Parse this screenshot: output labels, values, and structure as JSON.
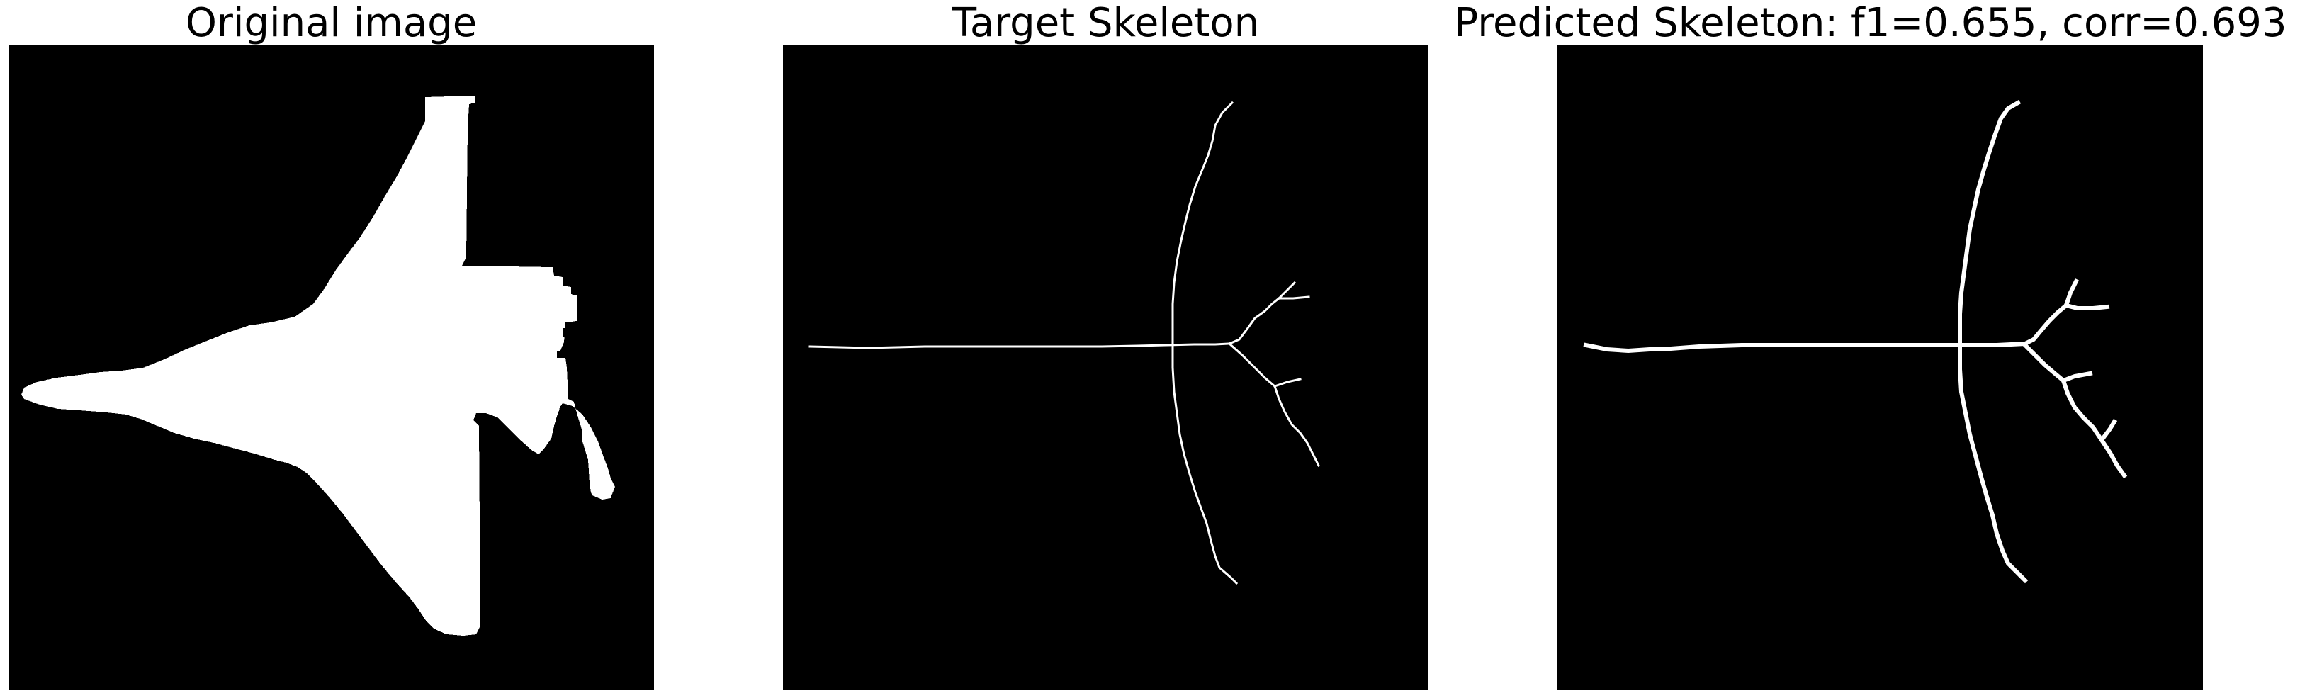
{
  "panels": [
    {
      "title": "Original image"
    },
    {
      "title": "Target Skeleton"
    },
    {
      "title": "Predicted Skeleton: f1=0.655, corr=0.693"
    }
  ],
  "colors": {
    "background": "#000000",
    "foreground": "#ffffff",
    "page": "#ffffff"
  }
}
